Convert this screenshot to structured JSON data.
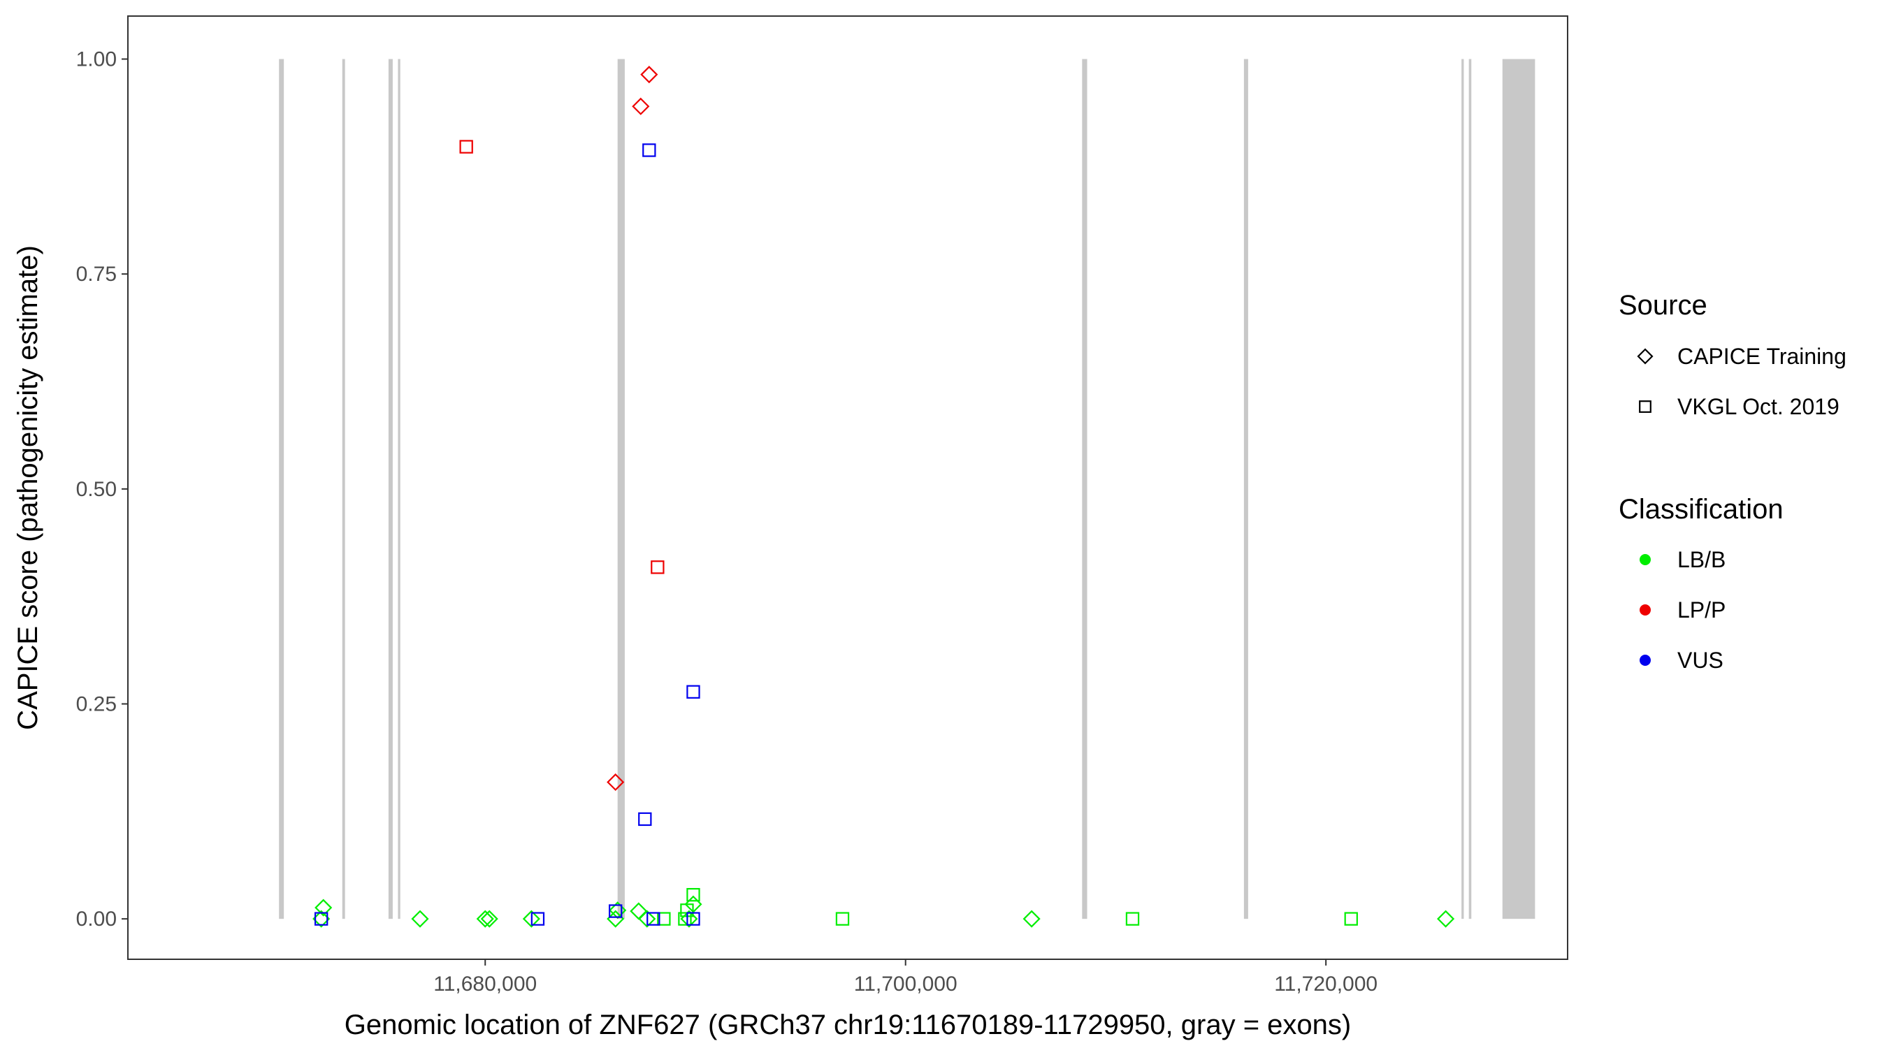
{
  "chart_data": {
    "type": "scatter",
    "xlabel": "Genomic location of ZNF627 (GRCh37 chr19:11670189-11729950, gray = exons)",
    "ylabel": "CAPICE score (pathogenicity estimate)",
    "xlim": [
      11663000,
      11731500
    ],
    "ylim": [
      -0.047,
      1.05
    ],
    "x_ticks": [
      {
        "value": 11680000,
        "label": "11,680,000"
      },
      {
        "value": 11700000,
        "label": "11,700,000"
      },
      {
        "value": 11720000,
        "label": "11,720,000"
      }
    ],
    "y_ticks": [
      {
        "value": 0.0,
        "label": "0.00"
      },
      {
        "value": 0.25,
        "label": "0.25"
      },
      {
        "value": 0.5,
        "label": "0.50"
      },
      {
        "value": 0.75,
        "label": "0.75"
      },
      {
        "value": 1.0,
        "label": "1.00"
      }
    ],
    "grid": false,
    "exon_color": "#c8c8c8",
    "exons": [
      {
        "start": 11670189,
        "end": 11670420
      },
      {
        "start": 11673200,
        "end": 11673330
      },
      {
        "start": 11675400,
        "end": 11675600
      },
      {
        "start": 11675850,
        "end": 11675960
      },
      {
        "start": 11686300,
        "end": 11686640
      },
      {
        "start": 11708400,
        "end": 11708640
      },
      {
        "start": 11716100,
        "end": 11716300
      },
      {
        "start": 11726450,
        "end": 11726560
      },
      {
        "start": 11726800,
        "end": 11726920
      },
      {
        "start": 11728400,
        "end": 11729950
      }
    ],
    "legend": {
      "position": "right",
      "source_title": "Source",
      "source_items": [
        {
          "label": "CAPICE Training",
          "shape": "diamond"
        },
        {
          "label": "VKGL Oct. 2019",
          "shape": "square"
        }
      ],
      "class_title": "Classification",
      "class_items": [
        {
          "label": "LB/B",
          "color": "#00ee00"
        },
        {
          "label": "LP/P",
          "color": "#ee0000"
        },
        {
          "label": "VUS",
          "color": "#0000ee"
        }
      ]
    },
    "series": [
      {
        "class": "LB/B",
        "source": "CAPICE Training",
        "color": "#00ee00",
        "shape": "diamond",
        "points": [
          [
            11672300,
            0.013
          ],
          [
            11672200,
            0.0
          ],
          [
            11676900,
            0.0
          ],
          [
            11680000,
            0.0
          ],
          [
            11680200,
            0.0
          ],
          [
            11682200,
            0.0
          ],
          [
            11686200,
            0.0
          ],
          [
            11687300,
            0.009
          ],
          [
            11687700,
            0.0
          ],
          [
            11686300,
            0.01
          ],
          [
            11689700,
            0.0
          ],
          [
            11689900,
            0.017
          ],
          [
            11706000,
            0.0
          ],
          [
            11725700,
            0.0
          ]
        ]
      },
      {
        "class": "LB/B",
        "source": "VKGL Oct. 2019",
        "color": "#00ee00",
        "shape": "square",
        "points": [
          [
            11689900,
            0.028
          ],
          [
            11689600,
            0.01
          ],
          [
            11688500,
            0.0
          ],
          [
            11689500,
            0.0
          ],
          [
            11697000,
            0.0
          ],
          [
            11710800,
            0.0
          ],
          [
            11721200,
            0.0
          ]
        ]
      },
      {
        "class": "LP/P",
        "source": "CAPICE Training",
        "color": "#ee0000",
        "shape": "diamond",
        "points": [
          [
            11687800,
            0.982
          ],
          [
            11687400,
            0.945
          ],
          [
            11686200,
            0.159
          ]
        ]
      },
      {
        "class": "LP/P",
        "source": "VKGL Oct. 2019",
        "color": "#ee0000",
        "shape": "square",
        "points": [
          [
            11679100,
            0.898
          ],
          [
            11688200,
            0.409
          ]
        ]
      },
      {
        "class": "VUS",
        "source": "VKGL Oct. 2019",
        "color": "#0000ee",
        "shape": "square",
        "points": [
          [
            11687800,
            0.894
          ],
          [
            11689900,
            0.264
          ],
          [
            11687600,
            0.116
          ],
          [
            11686200,
            0.009
          ],
          [
            11672200,
            0.0
          ],
          [
            11682500,
            0.0
          ],
          [
            11688000,
            0.0
          ],
          [
            11689900,
            0.0
          ]
        ]
      }
    ]
  }
}
